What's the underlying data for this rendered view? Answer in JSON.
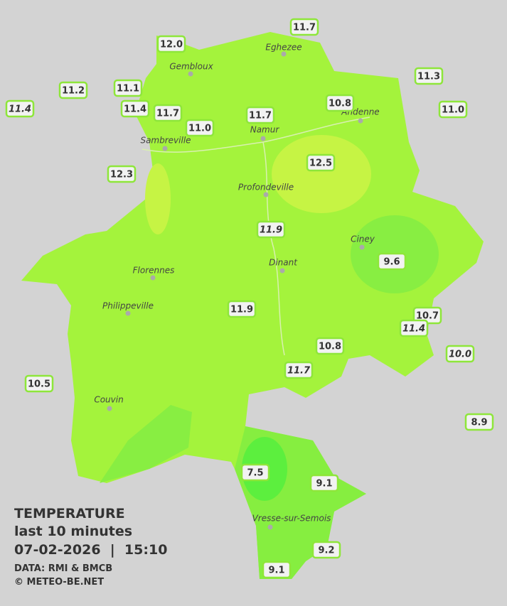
{
  "stations": [
    {
      "value": "12.0"
    },
    {
      "value": "11.7"
    },
    {
      "value": "11.3"
    },
    {
      "value": "11.2"
    },
    {
      "value": "11.1"
    },
    {
      "value": "11.4",
      "italic": true
    },
    {
      "value": "11.4"
    },
    {
      "value": "11.7"
    },
    {
      "value": "11.0"
    },
    {
      "value": "11.7"
    },
    {
      "value": "10.8"
    },
    {
      "value": "11.0"
    },
    {
      "value": "12.3"
    },
    {
      "value": "12.5"
    },
    {
      "value": "11.9",
      "italic": true
    },
    {
      "value": "9.6"
    },
    {
      "value": "11.9"
    },
    {
      "value": "10.7"
    },
    {
      "value": "11.4",
      "italic": true
    },
    {
      "value": "10.0",
      "italic": true
    },
    {
      "value": "10.8"
    },
    {
      "value": "11.7",
      "italic": true
    },
    {
      "value": "10.5"
    },
    {
      "value": "8.9"
    },
    {
      "value": "7.5"
    },
    {
      "value": "9.1"
    },
    {
      "value": "9.2"
    },
    {
      "value": "9.1"
    }
  ],
  "cities": [
    "Eghezee",
    "Gembloux",
    "Andenne",
    "Namur",
    "Sambreville",
    "Profondeville",
    "Ciney",
    "Dinant",
    "Florennes",
    "Philippeville",
    "Couvin",
    "Vresse-sur-Semois"
  ],
  "legend": {
    "title": "TEMPERATURE",
    "subtitle": "last 10 minutes",
    "datetime": "07-02-2026  |  15:10",
    "source": "DATA: RMI & BMCB",
    "copyright": "© METEO-BE.NET"
  }
}
